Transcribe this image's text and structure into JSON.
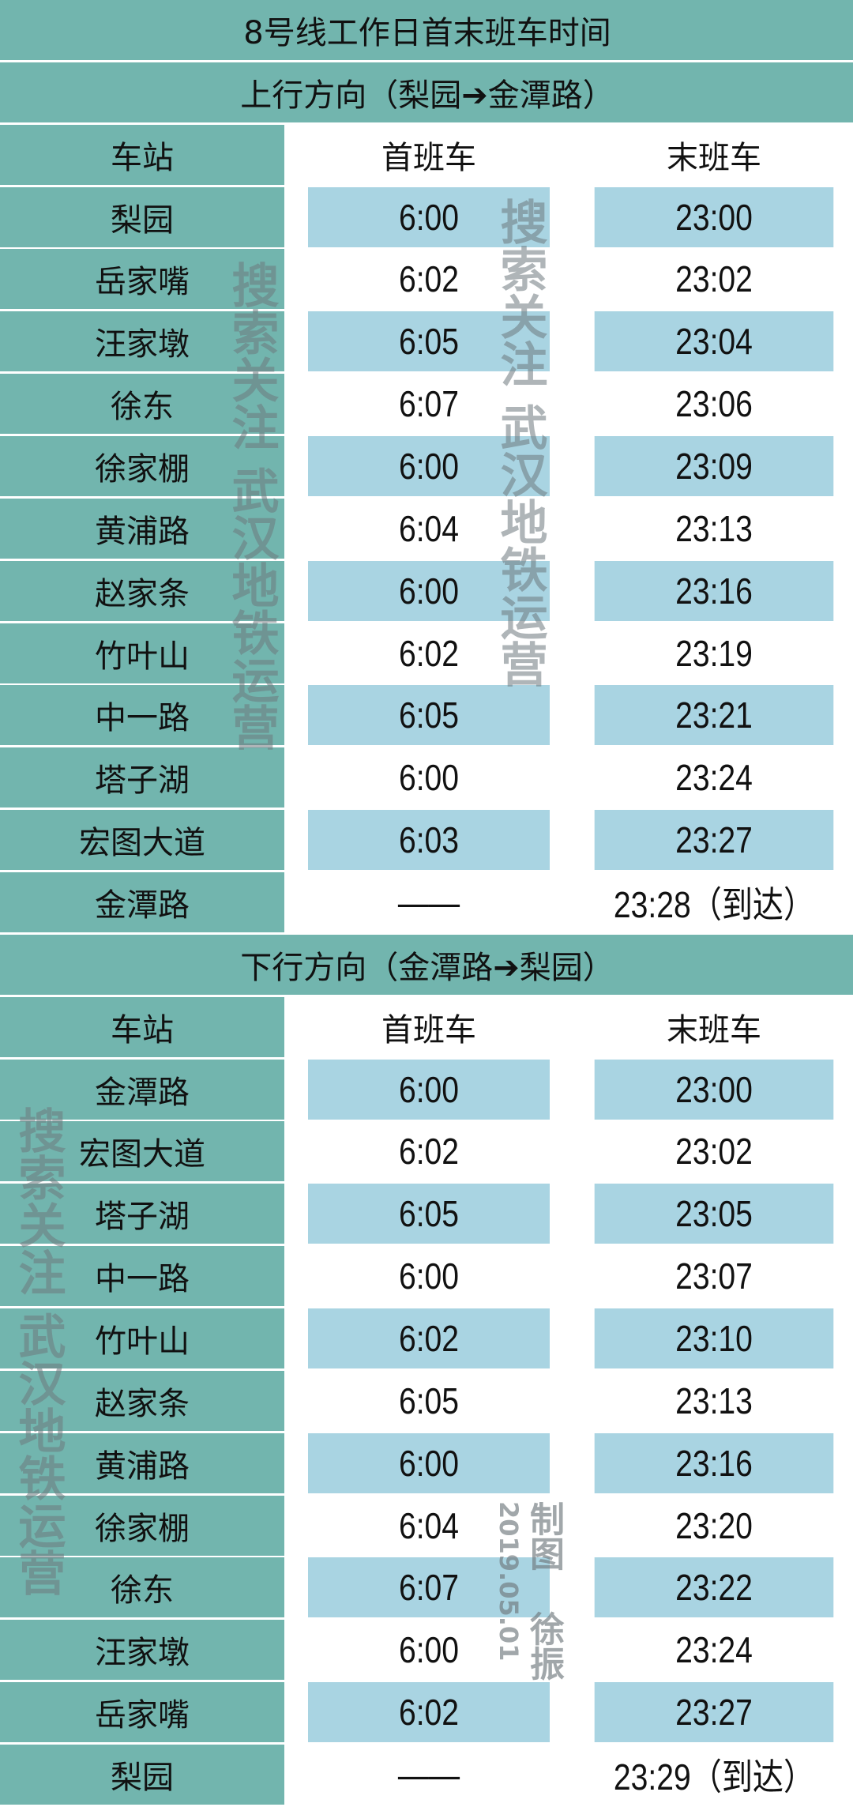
{
  "title": "8号线工作日首末班车时间",
  "colors": {
    "header_teal": "#72b5ae",
    "row_blue": "#a9d4e2",
    "row_white": "#ffffff"
  },
  "sections": [
    {
      "direction": "上行方向（梨园➔金潭路）",
      "headers": [
        "车站",
        "首班车",
        "末班车"
      ],
      "rows": [
        {
          "station": "梨园",
          "first": "6:00",
          "last": "23:00"
        },
        {
          "station": "岳家嘴",
          "first": "6:02",
          "last": "23:02"
        },
        {
          "station": "汪家墩",
          "first": "6:05",
          "last": "23:04"
        },
        {
          "station": "徐东",
          "first": "6:07",
          "last": "23:06"
        },
        {
          "station": "徐家棚",
          "first": "6:00",
          "last": "23:09"
        },
        {
          "station": "黄浦路",
          "first": "6:04",
          "last": "23:13"
        },
        {
          "station": "赵家条",
          "first": "6:00",
          "last": "23:16"
        },
        {
          "station": "竹叶山",
          "first": "6:02",
          "last": "23:19"
        },
        {
          "station": "中一路",
          "first": "6:05",
          "last": "23:21"
        },
        {
          "station": "塔子湖",
          "first": "6:00",
          "last": "23:24"
        },
        {
          "station": "宏图大道",
          "first": "6:03",
          "last": "23:27"
        },
        {
          "station": "金潭路",
          "first": "——",
          "last": "23:28（到达）"
        }
      ]
    },
    {
      "direction": "下行方向（金潭路➔梨园）",
      "headers": [
        "车站",
        "首班车",
        "末班车"
      ],
      "rows": [
        {
          "station": "金潭路",
          "first": "6:00",
          "last": "23:00"
        },
        {
          "station": "宏图大道",
          "first": "6:02",
          "last": "23:02"
        },
        {
          "station": "塔子湖",
          "first": "6:05",
          "last": "23:05"
        },
        {
          "station": "中一路",
          "first": "6:00",
          "last": "23:07"
        },
        {
          "station": "竹叶山",
          "first": "6:02",
          "last": "23:10"
        },
        {
          "station": "赵家条",
          "first": "6:05",
          "last": "23:13"
        },
        {
          "station": "黄浦路",
          "first": "6:00",
          "last": "23:16"
        },
        {
          "station": "徐家棚",
          "first": "6:04",
          "last": "23:20"
        },
        {
          "station": "徐东",
          "first": "6:07",
          "last": "23:22"
        },
        {
          "station": "汪家墩",
          "first": "6:00",
          "last": "23:24"
        },
        {
          "station": "岳家嘴",
          "first": "6:02",
          "last": "23:27"
        },
        {
          "station": "梨园",
          "first": "——",
          "last": "23:29（到达）"
        }
      ]
    }
  ],
  "watermark": {
    "line1": "搜索关注",
    "line2": "武汉地铁运营"
  },
  "credit": {
    "name": "制图 徐振",
    "date": "2019.05.01"
  }
}
